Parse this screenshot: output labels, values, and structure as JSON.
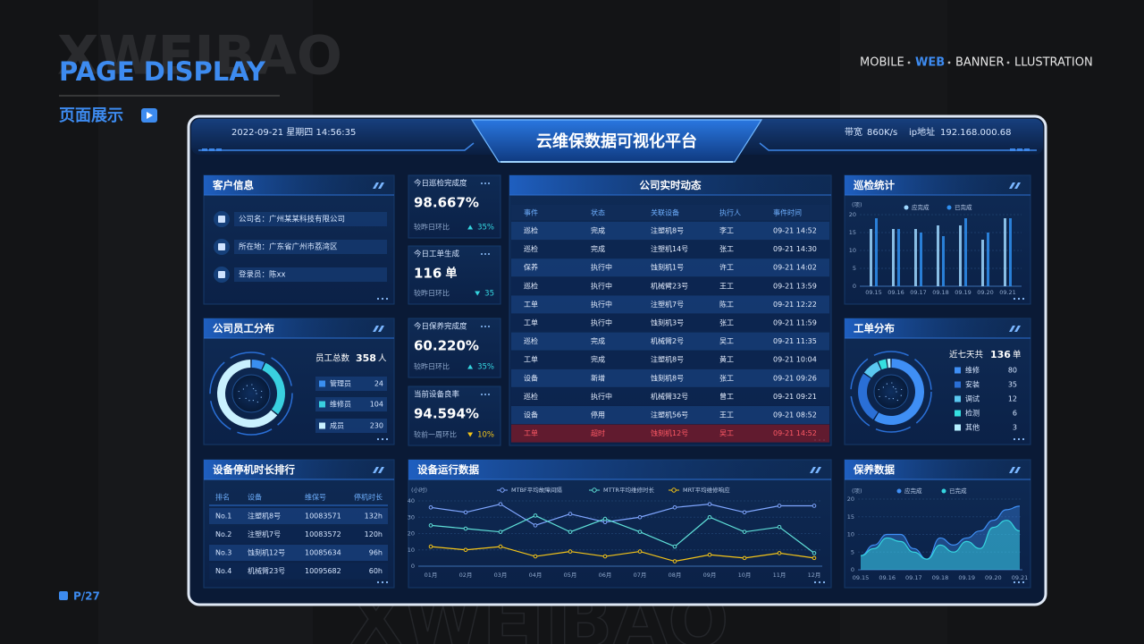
{
  "brand": {
    "watermark": "XWEIBAO",
    "title": "PAGE DISPLAY",
    "subtitle": "页面展示",
    "page": "P/27"
  },
  "nav": {
    "items": [
      "MOBILE",
      "WEB",
      "BANNER",
      "LLUSTRATION"
    ],
    "active": 1
  },
  "header": {
    "datetime": "2022-09-21  星期四  14:56:35",
    "title": "云维保数据可视化平台",
    "bandwidth_label": "带宽",
    "bandwidth": "860K/s",
    "ip_label": "ip地址",
    "ip": "192.168.000.68"
  },
  "customer": {
    "title": "客户信息",
    "rows": [
      "公司名：广州某某科技有限公司",
      "所在地：广东省广州市荔湾区",
      "登录员：陈xx"
    ]
  },
  "kpis": [
    {
      "title": "今日巡检完成度",
      "value": "98.667%",
      "compare": "较昨日环比",
      "change": "35%",
      "trend": "up",
      "color": "#35d6e0"
    },
    {
      "title": "今日工单生成",
      "value": "116",
      "unit": "单",
      "compare": "较昨日环比",
      "change": "35",
      "trend": "down",
      "color": "#35d6e0"
    },
    {
      "title": "今日保养完成度",
      "value": "60.220%",
      "compare": "较昨日环比",
      "change": "35%",
      "trend": "up",
      "color": "#35d6e0"
    },
    {
      "title": "当前设备良率",
      "value": "94.594%",
      "compare": "较前一周环比",
      "change": "10%",
      "trend": "down",
      "color": "#f5c518"
    }
  ],
  "downtime": {
    "title": "设备停机时长排行",
    "columns": [
      "排名",
      "设备",
      "维保号",
      "停机时长"
    ],
    "rows": [
      [
        "No.1",
        "注塑机8号",
        "10083571",
        "132h"
      ],
      [
        "No.2",
        "注塑机7号",
        "10083572",
        "120h"
      ],
      [
        "No.3",
        "蚀刻机12号",
        "10085634",
        "96h"
      ],
      [
        "No.4",
        "机械臂23号",
        "10095682",
        "60h"
      ]
    ]
  },
  "events": {
    "title": "公司实时动态",
    "columns": [
      "事件",
      "状态",
      "关联设备",
      "执行人",
      "事件时间"
    ],
    "highlight_row": 11,
    "rows": [
      [
        "巡检",
        "完成",
        "注塑机8号",
        "李工",
        "09-21  14:52"
      ],
      [
        "巡检",
        "完成",
        "注塑机14号",
        "张工",
        "09-21  14:30"
      ],
      [
        "保养",
        "执行中",
        "蚀刻机1号",
        "许工",
        "09-21  14:02"
      ],
      [
        "巡检",
        "执行中",
        "机械臂23号",
        "王工",
        "09-21  13:59"
      ],
      [
        "工单",
        "执行中",
        "注塑机7号",
        "陈工",
        "09-21  12:22"
      ],
      [
        "工单",
        "执行中",
        "蚀刻机3号",
        "张工",
        "09-21  11:59"
      ],
      [
        "巡检",
        "完成",
        "机械臂2号",
        "吴工",
        "09-21  11:35"
      ],
      [
        "工单",
        "完成",
        "注塑机8号",
        "黄工",
        "09-21  10:04"
      ],
      [
        "设备",
        "新增",
        "蚀刻机8号",
        "张工",
        "09-21  09:26"
      ],
      [
        "巡检",
        "执行中",
        "机械臂32号",
        "曾工",
        "09-21  09:21"
      ],
      [
        "设备",
        "停用",
        "注塑机56号",
        "王工",
        "09-21  08:52"
      ],
      [
        "工单",
        "超时",
        "蚀刻机12号",
        "吴工",
        "09-21  14:52"
      ]
    ]
  },
  "chart_data": [
    {
      "type": "bar",
      "title": "巡检统计",
      "y_label": "(项)",
      "categories": [
        "09.15",
        "09.16",
        "09.17",
        "09.18",
        "09.19",
        "09.20",
        "09.21"
      ],
      "series": [
        {
          "name": "应完成",
          "color": "#9fd8ff",
          "values": [
            16,
            16,
            16,
            17,
            17,
            13,
            19
          ]
        },
        {
          "name": "已完成",
          "color": "#2f8ff0",
          "values": [
            19,
            16,
            15,
            14,
            19,
            15,
            19
          ]
        }
      ],
      "ylim": [
        0,
        20
      ],
      "yticks": [
        0,
        5,
        10,
        15,
        20
      ],
      "grid": true
    },
    {
      "type": "donut",
      "title": "公司员工分布",
      "total_label": "员工总数",
      "total": 358,
      "total_unit": "人",
      "categories": [
        "管理员",
        "维修员",
        "成员"
      ],
      "values": [
        24,
        104,
        230
      ],
      "colors": [
        "#3a8ff0",
        "#39d0e0",
        "#c9f1ff"
      ]
    },
    {
      "type": "donut",
      "title": "工单分布",
      "total_label": "近七天共",
      "total": 136,
      "total_unit": "单",
      "categories": [
        "维修",
        "安装",
        "调试",
        "检测",
        "其他"
      ],
      "values": [
        80,
        35,
        12,
        6,
        3
      ],
      "colors": [
        "#3f8ff5",
        "#2a6fd6",
        "#5ac8f0",
        "#35e0e0",
        "#b6f0ff"
      ]
    },
    {
      "type": "line",
      "title": "设备运行数据",
      "y_label": "(小时)",
      "categories": [
        "01月",
        "02月",
        "03月",
        "04月",
        "05月",
        "06月",
        "07月",
        "08月",
        "09月",
        "10月",
        "11月",
        "12月"
      ],
      "series": [
        {
          "name": "MTBF平均故障间隔",
          "color": "#7fa6ff",
          "values": [
            36,
            33,
            38,
            25,
            32,
            27,
            30,
            36,
            38,
            33,
            37,
            37
          ]
        },
        {
          "name": "MTTR平均维修时长",
          "color": "#5fe0d8",
          "values": [
            25,
            23,
            21,
            31,
            21,
            29,
            21,
            12,
            30,
            21,
            24,
            8
          ]
        },
        {
          "name": "MRT平均维修响应",
          "color": "#f5c518",
          "values": [
            12,
            10,
            12,
            6,
            9,
            6,
            9,
            3,
            7,
            5,
            8,
            5
          ]
        }
      ],
      "ylim": [
        0,
        40
      ],
      "yticks": [
        0,
        10,
        20,
        30,
        40
      ],
      "grid": true
    },
    {
      "type": "area",
      "title": "保养数据",
      "y_label": "(项)",
      "categories": [
        "09.15",
        null,
        "09.16",
        null,
        "09.17",
        null,
        "09.18",
        null,
        "09.19",
        null,
        "09.20",
        null,
        "09.21"
      ],
      "series": [
        {
          "name": "应完成",
          "color": "#3f8ff5",
          "values": [
            4,
            7,
            10,
            10,
            6,
            3,
            9,
            7,
            9,
            11,
            14,
            17,
            18
          ]
        },
        {
          "name": "已完成",
          "color": "#35d6e0",
          "values": [
            4,
            6,
            9,
            8,
            5,
            3,
            7,
            5,
            8,
            6,
            12,
            14,
            11
          ]
        }
      ],
      "ylim": [
        0,
        20
      ],
      "yticks": [
        0,
        5,
        10,
        15,
        20
      ],
      "grid": true
    }
  ]
}
